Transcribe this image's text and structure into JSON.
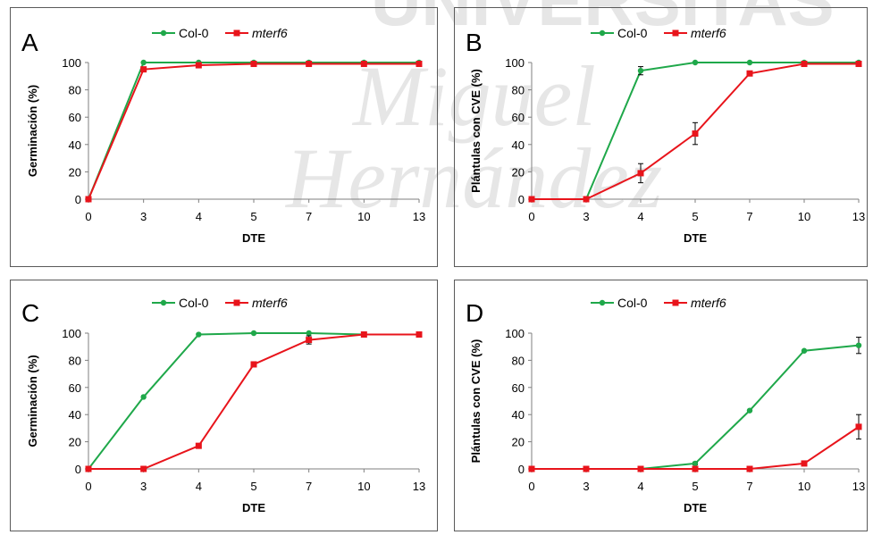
{
  "watermark": {
    "lines": [
      "UNIVERSITAS",
      "Miguel",
      "Hernández"
    ],
    "color": "#e6e6e6"
  },
  "colors": {
    "col0": "#1fa84a",
    "mterf6": "#e8141b",
    "axis": "#7f7f7f"
  },
  "chart_data": [
    {
      "panel_letter": "A",
      "type": "line",
      "x": [
        "0",
        "3",
        "4",
        "5",
        "7",
        "10",
        "13"
      ],
      "xlabel": "DTE",
      "ylabel": "Germinación (%)",
      "ylim": [
        0,
        100
      ],
      "yticks": [
        "0",
        "20",
        "40",
        "60",
        "80",
        "100"
      ],
      "legend_position": "top-center",
      "grid": false,
      "series": [
        {
          "name": "Col-0",
          "values": [
            0,
            100,
            100,
            100,
            100,
            100,
            100
          ],
          "errors": [
            0,
            0,
            0,
            0,
            0,
            0,
            0
          ]
        },
        {
          "name": "mterf6",
          "values": [
            0,
            95,
            98,
            99,
            99,
            99,
            99
          ],
          "errors": [
            0,
            1,
            1,
            1,
            0,
            0,
            0
          ]
        }
      ]
    },
    {
      "panel_letter": "B",
      "type": "line",
      "x": [
        "0",
        "3",
        "4",
        "5",
        "7",
        "10",
        "13"
      ],
      "xlabel": "DTE",
      "ylabel": "Plántulas con CVE (%)",
      "ylim": [
        0,
        100
      ],
      "yticks": [
        "0",
        "20",
        "40",
        "60",
        "80",
        "100"
      ],
      "legend_position": "top-right",
      "grid": false,
      "series": [
        {
          "name": "Col-0",
          "values": [
            0,
            0,
            94,
            100,
            100,
            100,
            100
          ],
          "errors": [
            0,
            0,
            3,
            0,
            0,
            0,
            0
          ]
        },
        {
          "name": "mterf6",
          "values": [
            0,
            0,
            19,
            48,
            92,
            99,
            99
          ],
          "errors": [
            0,
            0,
            7,
            8,
            1,
            1,
            1
          ]
        }
      ]
    },
    {
      "panel_letter": "C",
      "type": "line",
      "x": [
        "0",
        "3",
        "4",
        "5",
        "7",
        "10",
        "13"
      ],
      "xlabel": "DTE",
      "ylabel": "Germinación (%)",
      "ylim": [
        0,
        100
      ],
      "yticks": [
        "0",
        "20",
        "40",
        "60",
        "80",
        "100"
      ],
      "legend_position": "top-center",
      "grid": false,
      "series": [
        {
          "name": "Col-0",
          "values": [
            0,
            53,
            99,
            100,
            100,
            99,
            99
          ],
          "errors": [
            0,
            0,
            0,
            0,
            0,
            0,
            0
          ]
        },
        {
          "name": "mterf6",
          "values": [
            0,
            0,
            17,
            77,
            95,
            99,
            99
          ],
          "errors": [
            0,
            0,
            0,
            0,
            3,
            1,
            0
          ]
        }
      ]
    },
    {
      "panel_letter": "D",
      "type": "line",
      "x": [
        "0",
        "3",
        "4",
        "5",
        "7",
        "10",
        "13"
      ],
      "xlabel": "DTE",
      "ylabel": "Plántulas con CVE (%)",
      "ylim": [
        0,
        100
      ],
      "yticks": [
        "0",
        "20",
        "40",
        "60",
        "80",
        "100"
      ],
      "legend_position": "top-right",
      "grid": false,
      "series": [
        {
          "name": "Col-0",
          "values": [
            0,
            0,
            0,
            4,
            43,
            87,
            91
          ],
          "errors": [
            0,
            0,
            0,
            1,
            0,
            0,
            6
          ]
        },
        {
          "name": "mterf6",
          "values": [
            0,
            0,
            0,
            0,
            0,
            4,
            31
          ],
          "errors": [
            0,
            0,
            0,
            0,
            0,
            0,
            9
          ]
        }
      ]
    }
  ]
}
